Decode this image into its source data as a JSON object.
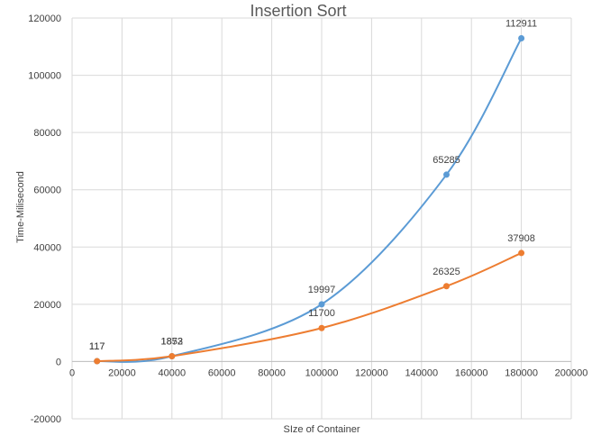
{
  "chart_data": {
    "type": "scatter",
    "title": "Insertion Sort",
    "xlabel": "SIze of Container",
    "ylabel": "Time-Milisecond",
    "xlim": [
      0,
      200000
    ],
    "ylim": [
      -20000,
      120000
    ],
    "x_ticks": [
      0,
      20000,
      40000,
      60000,
      80000,
      100000,
      120000,
      140000,
      160000,
      180000,
      200000
    ],
    "y_ticks": [
      -20000,
      0,
      20000,
      40000,
      60000,
      80000,
      100000,
      120000
    ],
    "grid": true,
    "legend": "none",
    "smooth_lines": true,
    "series": [
      {
        "color": "#5b9bd5",
        "x": [
          10000,
          40000,
          100000,
          150000,
          180000
        ],
        "y": [
          117,
          1853,
          19997,
          65285,
          112911
        ],
        "labels": [
          "117",
          "1853",
          "19997",
          "65285",
          "112911"
        ]
      },
      {
        "color": "#ed7d31",
        "x": [
          10000,
          40000,
          100000,
          150000,
          180000
        ],
        "y": [
          117,
          1872,
          11700,
          26325,
          37908
        ],
        "labels": [
          "117",
          "1872",
          "11700",
          "26325",
          "37908"
        ]
      }
    ]
  }
}
